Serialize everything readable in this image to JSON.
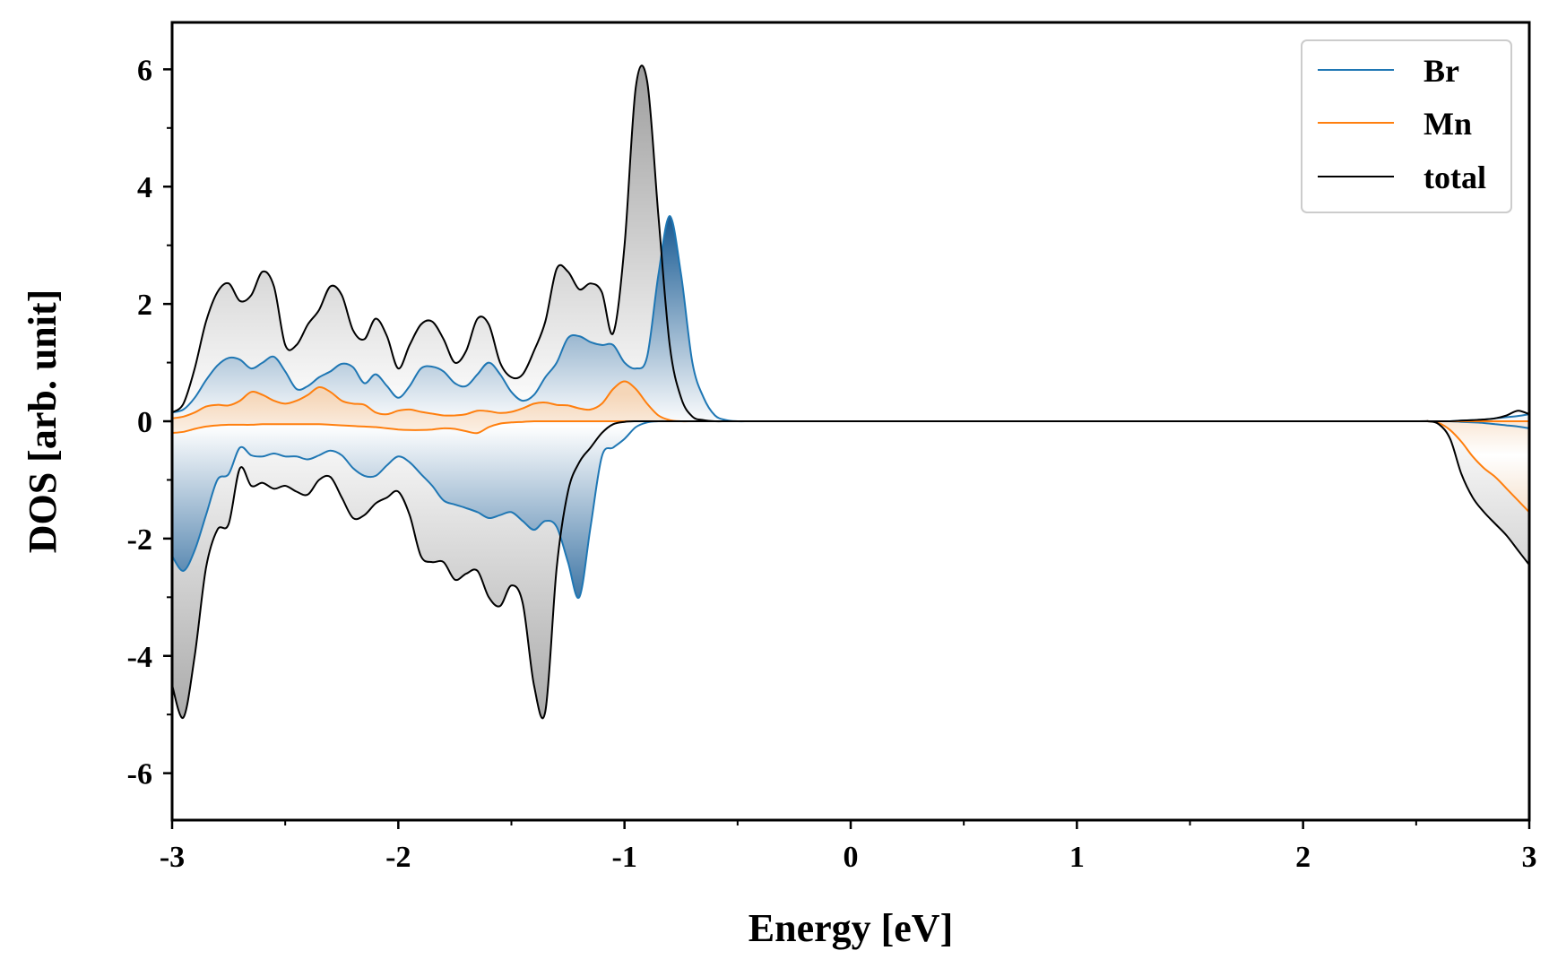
{
  "chart_data": {
    "type": "line",
    "title": "",
    "xlabel": "Energy [eV]",
    "ylabel": "DOS [arb. unit]",
    "xlim": [
      -3,
      3
    ],
    "ylim": [
      -6.8,
      6.8
    ],
    "xticks": [
      -3,
      -2,
      -1,
      0,
      1,
      2,
      3
    ],
    "xtick_labels": [
      "-3",
      "-2",
      "-1",
      "0",
      "1",
      "2",
      "3"
    ],
    "yticks": [
      -6,
      -4,
      -2,
      0,
      2,
      4,
      6
    ],
    "ytick_labels": [
      "-6",
      "-4",
      "-2",
      "0",
      "2",
      "4",
      "6"
    ],
    "grid": false,
    "legend_position": "top-right",
    "x": [
      -3.0,
      -2.95,
      -2.9,
      -2.85,
      -2.8,
      -2.75,
      -2.7,
      -2.65,
      -2.6,
      -2.55,
      -2.5,
      -2.45,
      -2.4,
      -2.35,
      -2.3,
      -2.25,
      -2.2,
      -2.15,
      -2.1,
      -2.05,
      -2.0,
      -1.95,
      -1.9,
      -1.85,
      -1.8,
      -1.75,
      -1.7,
      -1.65,
      -1.6,
      -1.55,
      -1.5,
      -1.45,
      -1.4,
      -1.35,
      -1.3,
      -1.25,
      -1.2,
      -1.15,
      -1.1,
      -1.05,
      -1.0,
      -0.95,
      -0.9,
      -0.85,
      -0.8,
      -0.75,
      -0.7,
      -0.65,
      -0.6,
      -0.55,
      -0.5,
      -0.45,
      -0.4,
      -0.35,
      -0.3,
      -0.25,
      -0.2,
      0.0,
      1.0,
      2.0,
      2.5,
      2.55,
      2.6,
      2.65,
      2.7,
      2.75,
      2.8,
      2.85,
      2.9,
      2.95,
      3.0
    ],
    "series": [
      {
        "name": "Br",
        "color": "#1f77b4",
        "up": [
          0.15,
          0.2,
          0.4,
          0.7,
          0.95,
          1.08,
          1.05,
          0.9,
          1.0,
          1.1,
          0.85,
          0.55,
          0.6,
          0.75,
          0.85,
          0.98,
          0.92,
          0.65,
          0.8,
          0.6,
          0.4,
          0.6,
          0.9,
          0.93,
          0.85,
          0.65,
          0.6,
          0.8,
          1.0,
          0.8,
          0.5,
          0.35,
          0.45,
          0.75,
          1.0,
          1.42,
          1.45,
          1.35,
          1.3,
          1.3,
          1.0,
          0.9,
          1.1,
          2.5,
          3.5,
          2.5,
          1.0,
          0.4,
          0.1,
          0.02,
          0.0,
          0.0,
          0.0,
          0.0,
          0.0,
          0.0,
          0.0,
          0.0,
          0.0,
          0.0,
          0.0,
          0.0,
          0.0,
          0.0,
          0.01,
          0.02,
          0.03,
          0.05,
          0.07,
          0.09,
          0.12
        ],
        "down": [
          -2.3,
          -2.55,
          -2.2,
          -1.6,
          -1.0,
          -0.9,
          -0.45,
          -0.58,
          -0.6,
          -0.55,
          -0.6,
          -0.6,
          -0.65,
          -0.58,
          -0.5,
          -0.58,
          -0.8,
          -0.93,
          -0.93,
          -0.75,
          -0.6,
          -0.7,
          -0.9,
          -1.1,
          -1.35,
          -1.42,
          -1.48,
          -1.55,
          -1.65,
          -1.6,
          -1.55,
          -1.7,
          -1.85,
          -1.7,
          -1.8,
          -2.4,
          -3.0,
          -1.8,
          -0.6,
          -0.45,
          -0.3,
          -0.1,
          -0.02,
          0.0,
          0.0,
          0.0,
          0.0,
          0.0,
          0.0,
          0.0,
          0.0,
          0.0,
          0.0,
          0.0,
          0.0,
          0.0,
          0.0,
          0.0,
          0.0,
          0.0,
          0.0,
          0.0,
          0.0,
          0.0,
          -0.01,
          -0.02,
          -0.03,
          -0.05,
          -0.07,
          -0.09,
          -0.12
        ]
      },
      {
        "name": "Mn",
        "color": "#ff7f0e",
        "up": [
          0.05,
          0.08,
          0.15,
          0.25,
          0.28,
          0.27,
          0.35,
          0.5,
          0.45,
          0.35,
          0.3,
          0.35,
          0.45,
          0.58,
          0.5,
          0.35,
          0.3,
          0.28,
          0.15,
          0.12,
          0.18,
          0.2,
          0.16,
          0.13,
          0.1,
          0.1,
          0.12,
          0.18,
          0.17,
          0.14,
          0.16,
          0.22,
          0.3,
          0.32,
          0.28,
          0.27,
          0.22,
          0.2,
          0.3,
          0.55,
          0.68,
          0.55,
          0.3,
          0.1,
          0.02,
          0.0,
          0.0,
          0.0,
          0.0,
          0.0,
          0.0,
          0.0,
          0.0,
          0.0,
          0.0,
          0.0,
          0.0,
          0.0,
          0.0,
          0.0,
          0.0,
          0.0,
          0.0,
          0.0,
          0.0,
          0.0,
          0.0,
          0.0,
          0.0,
          0.0,
          0.0
        ],
        "down": [
          -0.2,
          -0.18,
          -0.13,
          -0.09,
          -0.07,
          -0.06,
          -0.06,
          -0.06,
          -0.05,
          -0.05,
          -0.05,
          -0.05,
          -0.05,
          -0.05,
          -0.06,
          -0.07,
          -0.08,
          -0.09,
          -0.1,
          -0.12,
          -0.14,
          -0.15,
          -0.15,
          -0.14,
          -0.12,
          -0.13,
          -0.17,
          -0.2,
          -0.1,
          -0.04,
          -0.02,
          -0.01,
          0.0,
          0.0,
          0.0,
          0.0,
          0.0,
          0.0,
          0.0,
          0.0,
          0.0,
          0.0,
          0.0,
          0.0,
          0.0,
          0.0,
          0.0,
          0.0,
          0.0,
          0.0,
          0.0,
          0.0,
          0.0,
          0.0,
          0.0,
          0.0,
          0.0,
          0.0,
          0.0,
          0.0,
          0.0,
          0.0,
          -0.03,
          -0.15,
          -0.35,
          -0.6,
          -0.8,
          -0.95,
          -1.15,
          -1.35,
          -1.55
        ]
      },
      {
        "name": "total",
        "color": "#000000",
        "up": [
          0.15,
          0.3,
          0.9,
          1.7,
          2.2,
          2.35,
          2.05,
          2.15,
          2.55,
          2.3,
          1.3,
          1.3,
          1.65,
          1.9,
          2.3,
          2.15,
          1.55,
          1.4,
          1.75,
          1.45,
          0.9,
          1.3,
          1.65,
          1.7,
          1.4,
          1.0,
          1.2,
          1.75,
          1.65,
          1.0,
          0.75,
          0.8,
          1.2,
          1.7,
          2.6,
          2.55,
          2.25,
          2.35,
          2.2,
          1.5,
          3.0,
          5.7,
          5.8,
          3.5,
          1.3,
          0.4,
          0.08,
          0.02,
          0.0,
          0.0,
          0.0,
          0.0,
          0.0,
          0.0,
          0.0,
          0.0,
          0.0,
          0.0,
          0.0,
          0.0,
          0.0,
          0.0,
          0.0,
          0.0,
          0.01,
          0.02,
          0.03,
          0.05,
          0.1,
          0.18,
          0.12
        ],
        "down": [
          -4.5,
          -5.05,
          -4.0,
          -2.5,
          -1.85,
          -1.75,
          -0.8,
          -1.1,
          -1.05,
          -1.15,
          -1.1,
          -1.2,
          -1.25,
          -1.0,
          -0.95,
          -1.3,
          -1.65,
          -1.6,
          -1.4,
          -1.3,
          -1.2,
          -1.6,
          -2.3,
          -2.4,
          -2.4,
          -2.7,
          -2.6,
          -2.55,
          -3.0,
          -3.15,
          -2.8,
          -3.1,
          -4.5,
          -4.95,
          -2.5,
          -1.2,
          -0.7,
          -0.45,
          -0.2,
          -0.05,
          -0.01,
          0.0,
          0.0,
          0.0,
          0.0,
          0.0,
          0.0,
          0.0,
          0.0,
          0.0,
          0.0,
          0.0,
          0.0,
          0.0,
          0.0,
          0.0,
          0.0,
          0.0,
          0.0,
          0.0,
          0.0,
          0.0,
          -0.05,
          -0.3,
          -0.9,
          -1.3,
          -1.55,
          -1.75,
          -1.95,
          -2.2,
          -2.45
        ]
      }
    ],
    "legend": [
      "Br",
      "Mn",
      "total"
    ]
  }
}
